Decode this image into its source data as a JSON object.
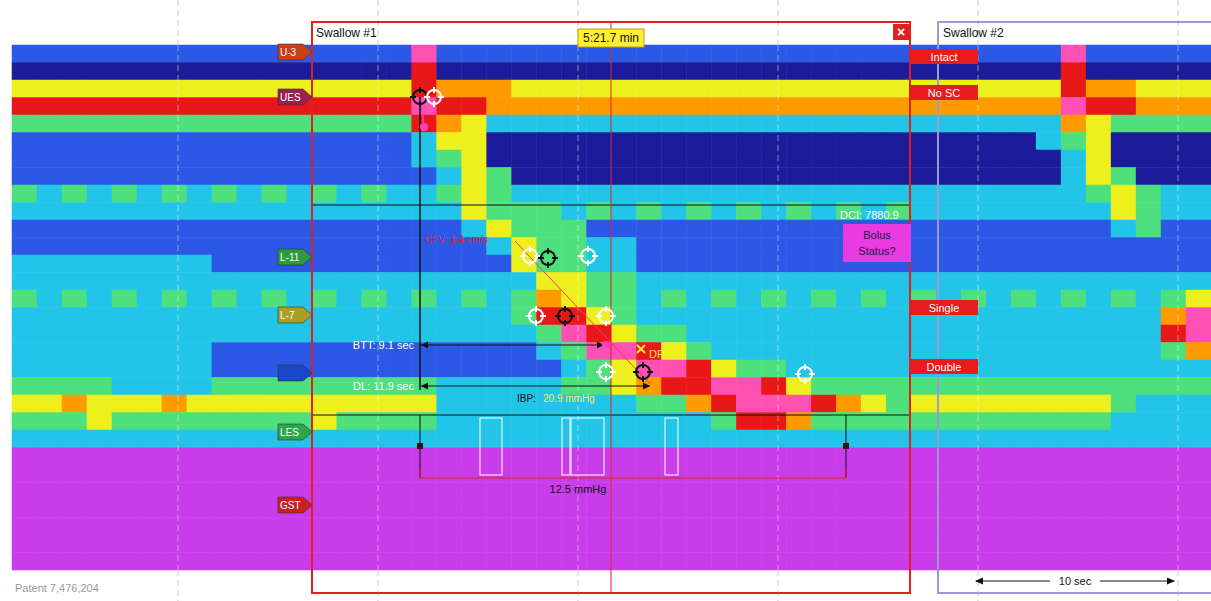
{
  "header": {
    "swallow_1": "Swallow #1",
    "time": "5:21.7 min",
    "close": "×",
    "swallow_2": "Swallow #2"
  },
  "sensor_labels": [
    "U-3",
    "UES",
    "L-11",
    "L-7",
    "LES",
    "GST"
  ],
  "status_labels": {
    "intact": "Intact",
    "no_sc": "No SC",
    "single": "Single",
    "double": "Double",
    "bolus": "Bolus Status?"
  },
  "metrics": {
    "dci": "DCI: 7880.9",
    "cfv": "CFV: 1.4 cm/s",
    "btt": "BTT: 9.1 sec",
    "dl": "DL: 11.9 sec",
    "ibp_label": "IBP:",
    "ibp_value": "20.9 mmHg",
    "dp": "DP",
    "irp": "12.5 mmHg"
  },
  "scale_bar": "10 sec",
  "footer": "Patent 7,476,204",
  "chart_data": {
    "type": "heatmap",
    "tick_labels": false,
    "color_range": [
      0,
      160
    ],
    "cells": [
      [
        20,
        20,
        20,
        20,
        20,
        20,
        20,
        20,
        20,
        20,
        20,
        20,
        20,
        20,
        20,
        20,
        140,
        20,
        20,
        20,
        20,
        20,
        20,
        20,
        20,
        20,
        20,
        20,
        20,
        20,
        20,
        20,
        20,
        20,
        20,
        20,
        20,
        20,
        20,
        20,
        20,
        20,
        140,
        20,
        20,
        20,
        20,
        20
      ],
      [
        0,
        0,
        0,
        0,
        0,
        0,
        0,
        0,
        0,
        0,
        0,
        0,
        0,
        0,
        0,
        0,
        120,
        0,
        0,
        0,
        0,
        0,
        0,
        0,
        0,
        0,
        0,
        0,
        0,
        0,
        0,
        0,
        0,
        0,
        0,
        0,
        0,
        0,
        0,
        0,
        0,
        0,
        120,
        0,
        0,
        0,
        0,
        0
      ],
      [
        80,
        80,
        80,
        80,
        80,
        80,
        80,
        80,
        80,
        80,
        80,
        80,
        80,
        80,
        80,
        80,
        120,
        100,
        100,
        100,
        80,
        80,
        80,
        80,
        80,
        80,
        80,
        80,
        80,
        80,
        80,
        80,
        80,
        80,
        80,
        80,
        80,
        80,
        80,
        80,
        80,
        80,
        120,
        100,
        100,
        80,
        80,
        80
      ],
      [
        120,
        120,
        120,
        120,
        120,
        120,
        120,
        120,
        120,
        120,
        120,
        120,
        120,
        120,
        120,
        120,
        140,
        120,
        120,
        100,
        100,
        100,
        100,
        100,
        100,
        100,
        100,
        100,
        100,
        100,
        100,
        100,
        100,
        100,
        100,
        100,
        100,
        100,
        100,
        100,
        100,
        100,
        140,
        120,
        120,
        100,
        100,
        100
      ],
      [
        60,
        60,
        60,
        60,
        60,
        60,
        60,
        60,
        60,
        60,
        60,
        60,
        60,
        60,
        60,
        60,
        120,
        100,
        80,
        40,
        40,
        40,
        40,
        40,
        40,
        40,
        40,
        40,
        40,
        40,
        40,
        40,
        40,
        40,
        40,
        40,
        40,
        40,
        40,
        40,
        40,
        40,
        100,
        80,
        60,
        60,
        60,
        60
      ],
      [
        20,
        20,
        20,
        20,
        20,
        20,
        20,
        20,
        20,
        20,
        20,
        20,
        20,
        20,
        20,
        20,
        40,
        80,
        80,
        0,
        0,
        0,
        0,
        0,
        0,
        0,
        0,
        0,
        0,
        0,
        0,
        0,
        0,
        0,
        0,
        0,
        0,
        0,
        0,
        0,
        0,
        40,
        60,
        80,
        0,
        0,
        0,
        0
      ],
      [
        20,
        20,
        20,
        20,
        20,
        20,
        20,
        20,
        20,
        20,
        20,
        20,
        20,
        20,
        20,
        20,
        40,
        60,
        80,
        0,
        0,
        0,
        0,
        0,
        0,
        0,
        0,
        0,
        0,
        0,
        0,
        0,
        0,
        0,
        0,
        0,
        0,
        0,
        0,
        0,
        0,
        0,
        40,
        80,
        0,
        0,
        0,
        0
      ],
      [
        20,
        20,
        20,
        20,
        20,
        20,
        20,
        20,
        20,
        20,
        20,
        20,
        20,
        20,
        20,
        20,
        20,
        40,
        80,
        60,
        0,
        0,
        0,
        0,
        0,
        0,
        0,
        0,
        0,
        0,
        0,
        0,
        0,
        0,
        0,
        0,
        0,
        0,
        0,
        0,
        0,
        0,
        40,
        80,
        60,
        0,
        0,
        0
      ],
      [
        60,
        40,
        60,
        40,
        60,
        40,
        60,
        40,
        60,
        40,
        60,
        40,
        60,
        40,
        60,
        40,
        40,
        60,
        80,
        60,
        40,
        40,
        40,
        40,
        40,
        40,
        40,
        40,
        40,
        40,
        40,
        40,
        40,
        40,
        40,
        40,
        40,
        40,
        40,
        40,
        40,
        40,
        40,
        60,
        80,
        60,
        40,
        40
      ],
      [
        40,
        40,
        40,
        40,
        40,
        40,
        40,
        40,
        40,
        40,
        40,
        40,
        40,
        40,
        40,
        40,
        40,
        40,
        80,
        60,
        60,
        60,
        40,
        60,
        40,
        60,
        40,
        60,
        40,
        60,
        40,
        60,
        40,
        60,
        40,
        60,
        40,
        40,
        40,
        40,
        40,
        40,
        40,
        40,
        80,
        60,
        40,
        40
      ],
      [
        20,
        20,
        20,
        20,
        20,
        20,
        20,
        20,
        20,
        20,
        20,
        20,
        20,
        20,
        20,
        20,
        20,
        20,
        40,
        80,
        60,
        60,
        60,
        20,
        20,
        20,
        20,
        20,
        20,
        20,
        20,
        20,
        20,
        20,
        20,
        20,
        20,
        20,
        20,
        20,
        20,
        20,
        20,
        20,
        40,
        60,
        20,
        20
      ],
      [
        20,
        20,
        20,
        20,
        20,
        20,
        20,
        20,
        20,
        20,
        20,
        20,
        20,
        20,
        20,
        20,
        20,
        20,
        20,
        40,
        80,
        60,
        60,
        40,
        40,
        20,
        20,
        20,
        20,
        20,
        20,
        20,
        20,
        20,
        20,
        20,
        20,
        20,
        20,
        20,
        20,
        20,
        20,
        20,
        20,
        20,
        20,
        20
      ],
      [
        40,
        40,
        40,
        40,
        40,
        40,
        40,
        40,
        20,
        20,
        20,
        20,
        20,
        20,
        20,
        20,
        20,
        20,
        20,
        20,
        80,
        60,
        60,
        40,
        40,
        20,
        20,
        20,
        20,
        20,
        20,
        20,
        20,
        20,
        20,
        20,
        20,
        20,
        20,
        20,
        20,
        20,
        20,
        20,
        20,
        20,
        20,
        20
      ],
      [
        40,
        40,
        40,
        40,
        40,
        40,
        40,
        40,
        40,
        40,
        40,
        40,
        40,
        40,
        40,
        40,
        40,
        40,
        40,
        40,
        40,
        80,
        80,
        60,
        60,
        40,
        40,
        40,
        40,
        40,
        40,
        40,
        40,
        40,
        40,
        40,
        40,
        40,
        40,
        40,
        40,
        40,
        40,
        40,
        40,
        40,
        40,
        40
      ],
      [
        60,
        40,
        60,
        40,
        60,
        40,
        60,
        40,
        60,
        40,
        60,
        40,
        60,
        40,
        60,
        40,
        60,
        40,
        60,
        40,
        60,
        100,
        80,
        60,
        60,
        40,
        60,
        40,
        60,
        40,
        60,
        40,
        60,
        40,
        60,
        40,
        60,
        40,
        60,
        40,
        60,
        40,
        60,
        40,
        60,
        40,
        60,
        80
      ],
      [
        40,
        40,
        40,
        40,
        40,
        40,
        40,
        40,
        40,
        40,
        40,
        40,
        40,
        40,
        40,
        40,
        40,
        40,
        40,
        40,
        60,
        120,
        120,
        80,
        60,
        40,
        40,
        40,
        40,
        40,
        40,
        40,
        40,
        40,
        40,
        40,
        40,
        40,
        40,
        40,
        40,
        40,
        40,
        40,
        40,
        40,
        100,
        140
      ],
      [
        40,
        40,
        40,
        40,
        40,
        40,
        40,
        40,
        40,
        40,
        40,
        40,
        40,
        40,
        40,
        40,
        40,
        40,
        40,
        40,
        40,
        60,
        140,
        120,
        80,
        60,
        60,
        40,
        40,
        40,
        40,
        40,
        40,
        40,
        40,
        40,
        40,
        40,
        40,
        40,
        40,
        40,
        40,
        40,
        40,
        40,
        120,
        140
      ],
      [
        40,
        40,
        40,
        40,
        40,
        40,
        40,
        40,
        20,
        20,
        20,
        20,
        20,
        20,
        20,
        20,
        20,
        20,
        20,
        20,
        20,
        40,
        60,
        140,
        140,
        120,
        80,
        60,
        40,
        40,
        40,
        40,
        40,
        40,
        40,
        40,
        40,
        40,
        40,
        40,
        40,
        40,
        40,
        40,
        40,
        40,
        60,
        100
      ],
      [
        40,
        40,
        40,
        40,
        40,
        40,
        40,
        40,
        20,
        20,
        20,
        20,
        20,
        20,
        20,
        20,
        20,
        20,
        20,
        20,
        20,
        20,
        40,
        60,
        80,
        140,
        140,
        120,
        80,
        60,
        60,
        40,
        40,
        40,
        40,
        40,
        40,
        40,
        40,
        40,
        40,
        40,
        40,
        40,
        40,
        40,
        40,
        40
      ],
      [
        60,
        60,
        60,
        60,
        40,
        40,
        40,
        40,
        60,
        60,
        60,
        60,
        60,
        60,
        60,
        60,
        60,
        40,
        40,
        40,
        40,
        40,
        60,
        60,
        80,
        100,
        120,
        120,
        140,
        140,
        120,
        80,
        60,
        60,
        60,
        60,
        60,
        60,
        60,
        60,
        60,
        60,
        60,
        60,
        60,
        60,
        60,
        60
      ],
      [
        80,
        80,
        100,
        80,
        80,
        80,
        100,
        80,
        80,
        80,
        80,
        80,
        80,
        80,
        80,
        80,
        80,
        40,
        40,
        40,
        40,
        40,
        40,
        40,
        40,
        60,
        60,
        100,
        120,
        140,
        140,
        140,
        120,
        100,
        80,
        60,
        80,
        80,
        80,
        80,
        80,
        80,
        80,
        80,
        60,
        40,
        40,
        40
      ],
      [
        60,
        60,
        60,
        80,
        60,
        60,
        60,
        60,
        60,
        60,
        60,
        60,
        80,
        60,
        60,
        60,
        60,
        40,
        40,
        40,
        40,
        40,
        40,
        40,
        40,
        40,
        40,
        40,
        60,
        120,
        120,
        100,
        60,
        60,
        60,
        60,
        60,
        60,
        60,
        60,
        60,
        60,
        60,
        60,
        40,
        40,
        40,
        40
      ],
      [
        40,
        40,
        40,
        40,
        40,
        40,
        40,
        40,
        40,
        40,
        40,
        40,
        40,
        40,
        40,
        40,
        40,
        40,
        40,
        40,
        40,
        40,
        40,
        40,
        40,
        40,
        40,
        40,
        40,
        40,
        40,
        40,
        40,
        40,
        40,
        40,
        40,
        40,
        40,
        40,
        40,
        40,
        40,
        40,
        40,
        40,
        40,
        40
      ],
      [
        160,
        160,
        160,
        160,
        160,
        160,
        160,
        160,
        160,
        160,
        160,
        160,
        160,
        160,
        160,
        160,
        160,
        160,
        160,
        160,
        160,
        160,
        160,
        160,
        160,
        160,
        160,
        160,
        160,
        160,
        160,
        160,
        160,
        160,
        160,
        160,
        160,
        160,
        160,
        160,
        160,
        160,
        160,
        160,
        160,
        160,
        160,
        160
      ],
      [
        160,
        160,
        160,
        160,
        160,
        160,
        160,
        160,
        160,
        160,
        160,
        160,
        160,
        160,
        160,
        160,
        160,
        160,
        160,
        160,
        160,
        160,
        160,
        160,
        160,
        160,
        160,
        160,
        160,
        160,
        160,
        160,
        160,
        160,
        160,
        160,
        160,
        160,
        160,
        160,
        160,
        160,
        160,
        160,
        160,
        160,
        160,
        160
      ],
      [
        160,
        160,
        160,
        160,
        160,
        160,
        160,
        160,
        160,
        160,
        160,
        160,
        160,
        160,
        160,
        160,
        160,
        160,
        160,
        160,
        160,
        160,
        160,
        160,
        160,
        160,
        160,
        160,
        160,
        160,
        160,
        160,
        160,
        160,
        160,
        160,
        160,
        160,
        160,
        160,
        160,
        160,
        160,
        160,
        160,
        160,
        160,
        160
      ],
      [
        160,
        160,
        160,
        160,
        160,
        160,
        160,
        160,
        160,
        160,
        160,
        160,
        160,
        160,
        160,
        160,
        160,
        160,
        160,
        160,
        160,
        160,
        160,
        160,
        160,
        160,
        160,
        160,
        160,
        160,
        160,
        160,
        160,
        160,
        160,
        160,
        160,
        160,
        160,
        160,
        160,
        160,
        160,
        160,
        160,
        160,
        160,
        160
      ],
      [
        160,
        160,
        160,
        160,
        160,
        160,
        160,
        160,
        160,
        160,
        160,
        160,
        160,
        160,
        160,
        160,
        160,
        160,
        160,
        160,
        160,
        160,
        160,
        160,
        160,
        160,
        160,
        160,
        160,
        160,
        160,
        160,
        160,
        160,
        160,
        160,
        160,
        160,
        160,
        160,
        160,
        160,
        160,
        160,
        160,
        160,
        160,
        160
      ],
      [
        160,
        160,
        160,
        160,
        160,
        160,
        160,
        160,
        160,
        160,
        160,
        160,
        160,
        160,
        160,
        160,
        160,
        160,
        160,
        160,
        160,
        160,
        160,
        160,
        160,
        160,
        160,
        160,
        160,
        160,
        160,
        160,
        160,
        160,
        160,
        160,
        160,
        160,
        160,
        160,
        160,
        160,
        160,
        160,
        160,
        160,
        160,
        160
      ],
      [
        160,
        160,
        160,
        160,
        160,
        160,
        160,
        160,
        160,
        160,
        160,
        160,
        160,
        160,
        160,
        160,
        160,
        160,
        160,
        160,
        160,
        160,
        160,
        160,
        160,
        160,
        160,
        160,
        160,
        160,
        160,
        160,
        160,
        160,
        160,
        160,
        160,
        160,
        160,
        160,
        160,
        160,
        160,
        160,
        160,
        160,
        160,
        160
      ]
    ]
  }
}
